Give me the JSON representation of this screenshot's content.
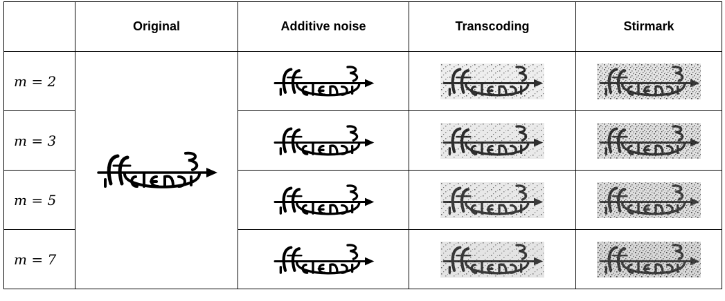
{
  "table": {
    "header": [
      "Original",
      "Additive noise",
      "Transcoding",
      "Stirmark"
    ],
    "rows": [
      "m = 2",
      "m = 3",
      "m = 5",
      "m = 7"
    ]
  }
}
